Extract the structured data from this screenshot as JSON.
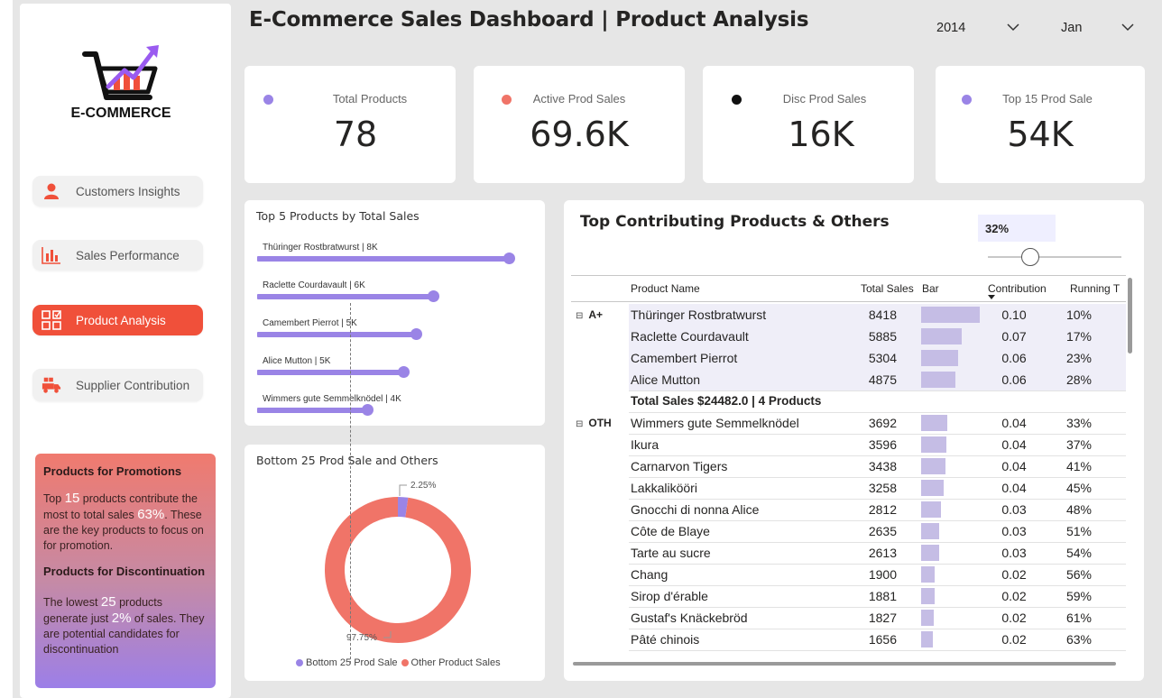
{
  "app": {
    "title": "E-Commerce Sales Dashboard | Product Analysis",
    "logo_text": "E-COMMERCE"
  },
  "filters": {
    "year": "2014",
    "month": "Jan"
  },
  "nav": {
    "items": [
      {
        "label": "Customers Insights",
        "icon": "person-icon",
        "active": false
      },
      {
        "label": "Sales Performance",
        "icon": "bar-chart-icon",
        "active": false
      },
      {
        "label": "Product Analysis",
        "icon": "grid-check-icon",
        "active": true
      },
      {
        "label": "Supplier Contribution",
        "icon": "delivery-truck-icon",
        "active": false
      }
    ]
  },
  "kpis": [
    {
      "label": "Total Products",
      "value": "78",
      "dot_color": "#9a84e6"
    },
    {
      "label": "Active Prod Sales",
      "value": "69.6K",
      "dot_color": "#f07468"
    },
    {
      "label": "Disc Prod Sales",
      "value": "16K",
      "dot_color": "#111111"
    },
    {
      "label": "Top 15 Prod Sale",
      "value": "54K",
      "dot_color": "#9a84e6"
    }
  ],
  "promo": {
    "heading1": "Products for Promotions",
    "p1_a": "Top ",
    "p1_n": "15",
    "p1_b": " products contribute the most to total sales ",
    "p1_pct": "63%",
    "p1_c": ". These are the key products to focus on for promotion.",
    "heading2": "Products for Discontinuation",
    "p2_a": "The lowest ",
    "p2_n": "25",
    "p2_b": " products generate just ",
    "p2_pct": "2%",
    "p2_c": " of sales. They are potential candidates for discontinuation"
  },
  "top5": {
    "title": "Top 5 Products by Total Sales"
  },
  "donut": {
    "title": "Bottom 25 Prod Sale and Others",
    "legend": [
      "Bottom 25 Prod Sale",
      "Other Product Sales"
    ],
    "label_small": "2.25%",
    "label_large": "97.75%"
  },
  "table": {
    "title": "Top Contributing Products & Others",
    "threshold": "32%",
    "headers": [
      "Product Name",
      "Total Sales",
      "Bar",
      "Contribution",
      "Running T"
    ],
    "group_a": "A+",
    "group_oth": "OTH",
    "subtotal": "Total Sales $24482.0 | 4 Products"
  },
  "chart_data": [
    {
      "type": "bar",
      "title": "Top 5 Products by Total Sales",
      "categories": [
        "Thüringer Rostbratwurst | 8K",
        "Raclette Courdavault | 6K",
        "Camembert Pierrot | 5K",
        "Alice Mutton | 5K",
        "Wimmers gute Semmelknödel | 4K"
      ],
      "values": [
        8418,
        5885,
        5304,
        4875,
        3692
      ],
      "orientation": "horizontal"
    },
    {
      "type": "pie",
      "title": "Bottom 25 Prod Sale and Others",
      "categories": [
        "Bottom 25 Prod Sale",
        "Other Product Sales"
      ],
      "values": [
        2.25,
        97.75
      ],
      "colors": [
        "#9a84e6",
        "#f07468"
      ],
      "legend": "bottom"
    },
    {
      "type": "table",
      "title": "Top Contributing Products & Others",
      "columns": [
        "Product Name",
        "Total Sales",
        "Contribution",
        "Running T"
      ],
      "rows_a": [
        [
          "Thüringer Rostbratwurst",
          8418,
          "0.10",
          "10%"
        ],
        [
          "Raclette Courdavault",
          5885,
          "0.07",
          "17%"
        ],
        [
          "Camembert Pierrot",
          5304,
          "0.06",
          "23%"
        ],
        [
          "Alice Mutton",
          4875,
          "0.06",
          "28%"
        ]
      ],
      "rows_oth": [
        [
          "Wimmers gute Semmelknödel",
          3692,
          "0.04",
          "33%"
        ],
        [
          "Ikura",
          3596,
          "0.04",
          "37%"
        ],
        [
          "Carnarvon Tigers",
          3438,
          "0.04",
          "41%"
        ],
        [
          "Lakkalikööri",
          3258,
          "0.04",
          "45%"
        ],
        [
          "Gnocchi di nonna Alice",
          2812,
          "0.03",
          "48%"
        ],
        [
          "Côte de Blaye",
          2635,
          "0.03",
          "51%"
        ],
        [
          "Tarte au sucre",
          2613,
          "0.03",
          "54%"
        ],
        [
          "Chang",
          1900,
          "0.02",
          "56%"
        ],
        [
          "Sirop d'érable",
          1881,
          "0.02",
          "59%"
        ],
        [
          "Gustaf's Knäckebröd",
          1827,
          "0.02",
          "61%"
        ],
        [
          "Pâté chinois",
          1656,
          "0.02",
          "63%"
        ]
      ]
    }
  ]
}
